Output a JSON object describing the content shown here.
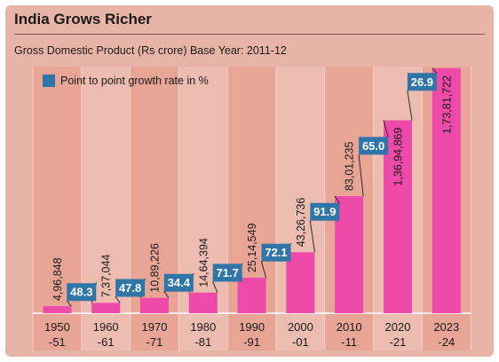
{
  "title": "India Grows Richer",
  "subtitle": "Gross Domestic Product (Rs crore) Base Year: 2011-12",
  "legend_label": "Point to point growth rate in %",
  "colors": {
    "bar": "#ee4aaa",
    "growth_box": "#2f75a8",
    "band_a": "#e8a596",
    "band_b": "#ecbcb0",
    "background": "#e9b4a8"
  },
  "chart_data": {
    "type": "bar",
    "title": "India Grows Richer",
    "subtitle": "Gross Domestic Product (Rs crore) Base Year: 2011-12",
    "categories": [
      [
        "1950",
        "-51"
      ],
      [
        "1960",
        "-61"
      ],
      [
        "1970",
        "-71"
      ],
      [
        "1980",
        "-81"
      ],
      [
        "1990",
        "-91"
      ],
      [
        "2000",
        "-01"
      ],
      [
        "2010",
        "-11"
      ],
      [
        "2020",
        "-21"
      ],
      [
        "2023",
        "-24"
      ]
    ],
    "values": [
      496848,
      737044,
      1089226,
      1464394,
      2514549,
      4326736,
      8301235,
      13694869,
      17381722
    ],
    "value_labels": [
      "4,96,848",
      "7,37,044",
      "10,89,226",
      "14,64,394",
      "25,14,549",
      "43,26,736",
      "83,01,235",
      "1,36,94,869",
      "1,73,81,722"
    ],
    "growth_rates": [
      {
        "value": 48.3,
        "label": "48.3"
      },
      {
        "value": 47.8,
        "label": "47.8"
      },
      {
        "value": 34.4,
        "label": "34.4"
      },
      {
        "value": 71.7,
        "label": "71.7"
      },
      {
        "value": 72.1,
        "label": "72.1"
      },
      {
        "value": 91.9,
        "label": "91.9"
      },
      {
        "value": 65.0,
        "label": "65.0"
      },
      {
        "value": 26.9,
        "label": "26.9"
      }
    ],
    "ylim": [
      0,
      17381722
    ],
    "legend": [
      {
        "name": "Point to point growth rate in %",
        "color": "#2f75a8"
      }
    ],
    "legend_position": "top-left",
    "grid": false
  }
}
